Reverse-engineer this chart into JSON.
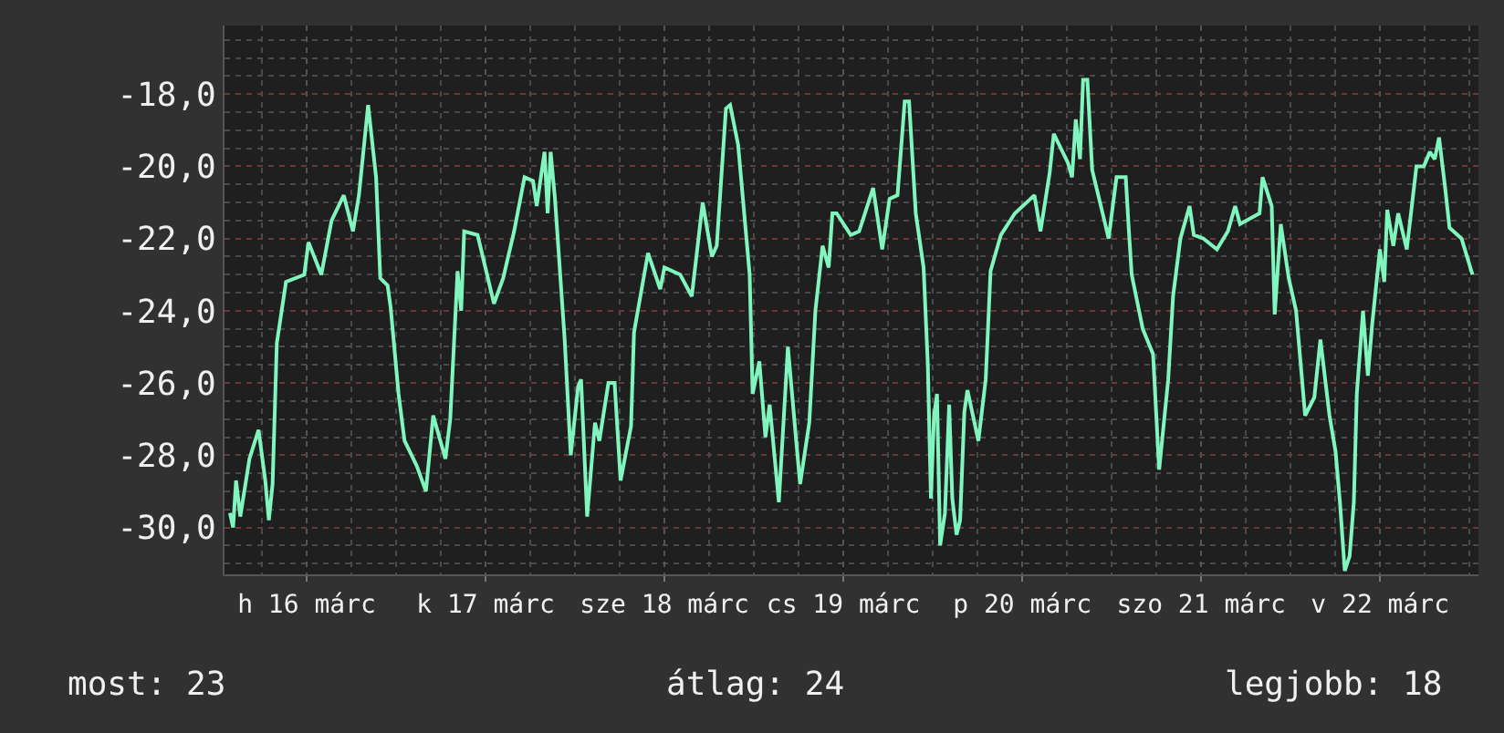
{
  "chart_data": {
    "type": "line",
    "x": [
      "--03-16T01:43",
      "--03-16T02:08",
      "--03-16T02:32",
      "--03-16T03:06",
      "--03-16T04:20",
      "--03-16T05:33",
      "--03-16T06:27",
      "--03-16T06:56",
      "--03-16T07:26",
      "--03-16T08:00",
      "--03-16T09:14",
      "--03-16T11:41",
      "--03-16T12:15",
      "--03-16T13:58",
      "--03-16T15:21",
      "--03-16T16:59",
      "--03-16T18:13",
      "--03-16T19:01",
      "--03-16T20:15",
      "--03-16T21:19",
      "--03-16T21:53",
      "--03-16T22:52",
      "--03-16T23:16",
      "--03-17T00:20",
      "--03-17T01:08",
      "--03-17T02:47",
      "--03-17T04:00",
      "--03-17T04:59",
      "--03-17T06:37",
      "--03-17T07:16",
      "--03-17T08:15",
      "--03-17T08:44",
      "--03-17T09:08",
      "--03-17T10:56",
      "--03-17T13:08",
      "--03-17T14:22",
      "--03-17T15:50",
      "--03-17T17:14",
      "--03-17T18:22",
      "--03-17T18:52",
      "--03-17T19:55",
      "--03-17T20:20",
      "--03-17T20:44",
      "--03-17T21:19",
      "--03-17T22:37",
      "--03-17T23:26",
      "--03-18T00:25",
      "--03-18T00:49",
      "--03-18T01:38",
      "--03-18T02:41",
      "--03-18T03:16",
      "--03-18T04:29",
      "--03-18T05:19",
      "--03-18T06:07",
      "--03-18T07:31",
      "--03-18T07:55",
      "--03-18T09:48",
      "--03-18T11:26",
      "--03-18T12:00",
      "--03-18T14:07",
      "--03-18T15:40",
      "--03-18T17:08",
      "--03-18T18:22",
      "--03-18T19:01",
      "--03-18T20:15",
      "--03-18T20:49",
      "--03-18T21:53",
      "--03-18T23:26",
      "--03-18T23:50",
      "--03-19T00:44",
      "--03-19T01:33",
      "--03-19T02:07",
      "--03-19T03:21",
      "--03-19T04:34",
      "--03-19T05:38",
      "--03-19T06:12",
      "--03-19T07:26",
      "--03-19T08:15",
      "--03-19T09:13",
      "--03-19T10:02",
      "--03-19T10:32",
      "--03-19T11:06",
      "--03-19T12:59",
      "--03-19T14:07",
      "--03-19T16:00",
      "--03-19T17:13",
      "--03-19T18:12",
      "--03-19T19:16",
      "--03-19T20:14",
      "--03-19T20:49",
      "--03-19T21:43",
      "--03-19T22:46",
      "--03-19T23:20",
      "--03-19T23:45",
      "--03-20T00:10",
      "--03-20T00:34",
      "--03-20T00:59",
      "--03-20T01:38",
      "--03-20T02:12",
      "--03-20T02:37",
      "--03-20T03:11",
      "--03-20T03:40",
      "--03-20T04:14",
      "--03-20T04:39",
      "--03-20T06:07",
      "--03-20T07:06",
      "--03-20T07:45",
      "--03-20T09:08",
      "--03-20T11:01",
      "--03-20T13:38",
      "--03-20T14:27",
      "--03-20T15:40",
      "--03-20T16:14",
      "--03-20T18:07",
      "--03-20T18:41",
      "--03-20T19:11",
      "--03-20T19:45",
      "--03-20T20:10",
      "--03-20T20:44",
      "--03-20T21:23",
      "--03-20T23:01",
      "--03-20T23:35",
      "--03-21T00:39",
      "--03-21T01:53",
      "--03-21T02:17",
      "--03-21T02:41",
      "--03-21T04:10",
      "--03-21T05:33",
      "--03-21T06:22",
      "--03-21T07:35",
      "--03-21T08:14",
      "--03-21T09:13",
      "--03-21T10:27",
      "--03-21T11:01",
      "--03-21T12:19",
      "--03-21T14:07",
      "--03-21T15:35",
      "--03-21T16:34",
      "--03-21T17:13",
      "--03-21T19:50",
      "--03-21T20:14",
      "--03-21T21:28",
      "--03-21T21:52",
      "--03-21T22:41",
      "--03-21T23:45",
      "--03-22T00:44",
      "--03-22T01:57",
      "--03-22T03:11",
      "--03-22T04:00",
      "--03-22T05:13",
      "--03-22T06:02",
      "--03-22T06:37",
      "--03-22T07:16",
      "--03-22T07:55",
      "--03-22T08:29",
      "--03-22T08:53",
      "--03-22T09:43",
      "--03-22T10:22",
      "--03-22T10:56",
      "--03-22T11:59",
      "--03-22T12:34",
      "--03-22T12:58",
      "--03-22T13:47",
      "--03-22T14:26",
      "--03-22T15:35",
      "--03-22T16:53",
      "--03-22T17:52",
      "--03-22T18:41",
      "--03-22T19:20",
      "--03-22T19:55",
      "--03-22T20:44",
      "--03-22T21:19",
      "--03-22T22:56",
      "--03-23T00:24"
    ],
    "series": [
      {
        "color": "#80f5bd",
        "values": [
          -29.6,
          -30.0,
          -28.7,
          -29.7,
          -28.1,
          -27.3,
          -28.7,
          -29.8,
          -28.8,
          -24.9,
          -23.2,
          -23.0,
          -22.1,
          -23.0,
          -21.5,
          -20.8,
          -21.8,
          -20.8,
          -18.3,
          -20.3,
          -23.1,
          -23.3,
          -23.9,
          -26.3,
          -27.6,
          -28.3,
          -29.0,
          -26.9,
          -28.1,
          -27.0,
          -22.9,
          -24.0,
          -21.8,
          -21.9,
          -23.8,
          -23.1,
          -21.8,
          -20.3,
          -20.4,
          -21.1,
          -19.6,
          -21.3,
          -19.6,
          -20.9,
          -24.8,
          -28.0,
          -26.1,
          -25.9,
          -29.7,
          -27.1,
          -27.6,
          -26.0,
          -26.0,
          -28.7,
          -27.2,
          -24.6,
          -22.4,
          -23.4,
          -22.8,
          -23.0,
          -23.6,
          -21.0,
          -22.5,
          -22.2,
          -18.4,
          -18.3,
          -19.4,
          -23.0,
          -26.3,
          -25.4,
          -27.5,
          -26.6,
          -29.3,
          -25.0,
          -27.5,
          -28.8,
          -27.1,
          -24.0,
          -22.2,
          -22.8,
          -21.3,
          -21.3,
          -21.9,
          -21.8,
          -20.6,
          -22.3,
          -20.9,
          -20.8,
          -18.2,
          -18.2,
          -21.3,
          -22.8,
          -25.5,
          -29.2,
          -26.9,
          -26.3,
          -30.5,
          -29.6,
          -26.6,
          -29.2,
          -30.2,
          -29.8,
          -26.8,
          -26.2,
          -27.6,
          -25.9,
          -22.9,
          -21.9,
          -21.3,
          -20.8,
          -21.8,
          -20.2,
          -19.1,
          -19.9,
          -20.3,
          -18.7,
          -19.8,
          -17.6,
          -17.6,
          -20.1,
          -21.5,
          -22.0,
          -20.3,
          -20.3,
          -21.7,
          -23.0,
          -24.5,
          -25.2,
          -28.4,
          -25.9,
          -23.6,
          -22.0,
          -21.1,
          -21.9,
          -22.0,
          -22.3,
          -21.8,
          -21.1,
          -21.6,
          -21.3,
          -20.3,
          -21.1,
          -24.1,
          -21.6,
          -23.1,
          -24.0,
          -26.9,
          -26.4,
          -24.8,
          -26.9,
          -27.9,
          -29.3,
          -31.2,
          -30.8,
          -29.3,
          -26.3,
          -24.0,
          -25.8,
          -24.4,
          -22.3,
          -23.2,
          -21.2,
          -22.2,
          -21.3,
          -22.3,
          -20.0,
          -20.0,
          -19.6,
          -19.8,
          -19.2,
          -20.6,
          -21.7,
          -22.0,
          -23.0
        ]
      }
    ],
    "xlim": [
      "--03-16T00:59",
      "--03-23T01:12"
    ],
    "xticks": [
      {
        "value": "--03-16T12:00",
        "label": "h 16 márc"
      },
      {
        "value": "--03-17T12:00",
        "label": "k 17 márc"
      },
      {
        "value": "--03-18T12:00",
        "label": "sze 18 márc"
      },
      {
        "value": "--03-19T12:00",
        "label": "cs 19 márc"
      },
      {
        "value": "--03-20T12:00",
        "label": "p 20 márc"
      },
      {
        "value": "--03-21T12:00",
        "label": "szo 21 márc"
      },
      {
        "value": "--03-22T12:00",
        "label": "v 22 márc"
      }
    ],
    "ylim": [
      -31.3,
      -16.1
    ],
    "yticks": [
      {
        "value": -18,
        "label": "-18,0"
      },
      {
        "value": -20,
        "label": "-20,0"
      },
      {
        "value": -22,
        "label": "-22,0"
      },
      {
        "value": -24,
        "label": "-24,0"
      },
      {
        "value": -26,
        "label": "-26,0"
      },
      {
        "value": -28,
        "label": "-28,0"
      },
      {
        "value": -30,
        "label": "-30,0"
      }
    ],
    "grid": true,
    "marker": "none",
    "line_style": "solid",
    "annotations": [
      "most: 23",
      "átlag: 24",
      "legjobb: 18"
    ]
  }
}
